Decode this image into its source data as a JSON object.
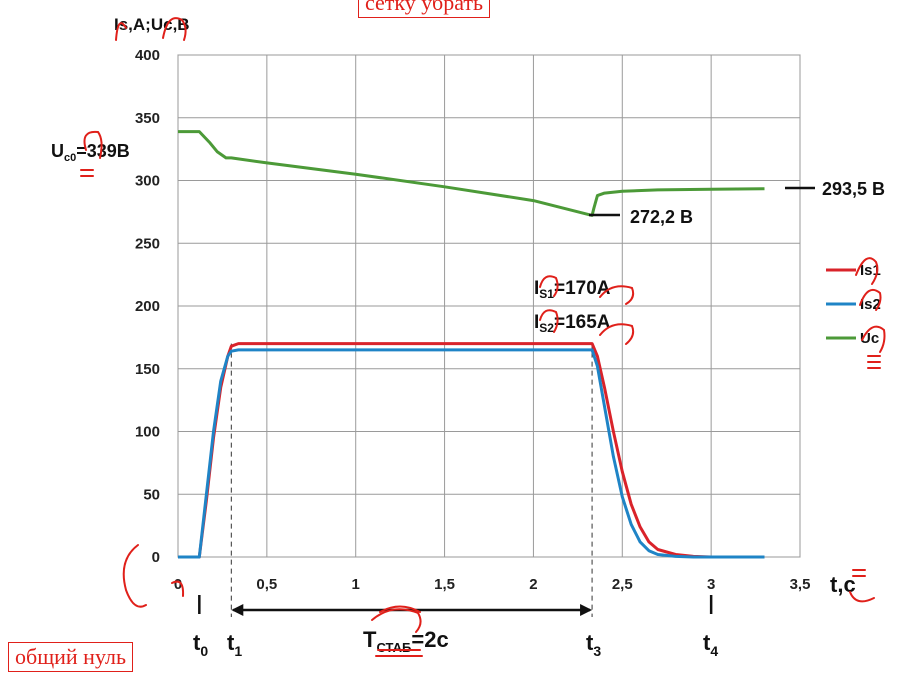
{
  "notes": {
    "top": "сетку убрать",
    "bottom": "общий нуль"
  },
  "chart_data": {
    "type": "line",
    "xlabel": "t,c",
    "ylabel": "Is,A;Uc,B",
    "xlim": [
      0,
      3.5
    ],
    "ylim": [
      0,
      400
    ],
    "xticks": [
      "0",
      "0,5",
      "1",
      "1,5",
      "2",
      "2,5",
      "3",
      "3,5"
    ],
    "yticks": [
      "0",
      "50",
      "100",
      "150",
      "200",
      "250",
      "300",
      "350",
      "400"
    ],
    "grid": true,
    "legend_position": "right",
    "series": [
      {
        "name": "Is1",
        "color": "#d9232a",
        "x": [
          0,
          0.12,
          0.16,
          0.2,
          0.24,
          0.28,
          0.3,
          0.34,
          2.33,
          2.36,
          2.4,
          2.45,
          2.5,
          2.55,
          2.6,
          2.65,
          2.7,
          2.8,
          2.9,
          3.0,
          3.3
        ],
        "y": [
          0,
          0,
          45,
          95,
          135,
          160,
          168,
          170,
          170,
          160,
          135,
          100,
          68,
          42,
          24,
          12,
          6,
          2,
          0.5,
          0,
          0
        ]
      },
      {
        "name": "Is2",
        "color": "#1f84c6",
        "x": [
          0,
          0.12,
          0.16,
          0.2,
          0.24,
          0.28,
          0.3,
          0.34,
          2.33,
          2.36,
          2.4,
          2.45,
          2.5,
          2.55,
          2.6,
          2.65,
          2.7,
          2.8,
          2.9,
          3.0,
          3.3
        ],
        "y": [
          0,
          0,
          50,
          100,
          140,
          160,
          164,
          165,
          165,
          152,
          120,
          80,
          48,
          26,
          12,
          5,
          2,
          0.5,
          0,
          0,
          0
        ]
      },
      {
        "name": "Uc",
        "color": "#4c9a38",
        "x": [
          0,
          0.12,
          0.18,
          0.22,
          0.27,
          0.3,
          0.5,
          1.0,
          1.5,
          2.0,
          2.33,
          2.34,
          2.36,
          2.4,
          2.5,
          2.7,
          3.0,
          3.3
        ],
        "y": [
          339,
          339,
          330,
          323,
          318,
          318,
          314,
          305,
          295,
          284,
          272.2,
          278,
          288,
          290,
          291.5,
          292.5,
          293,
          293.5
        ]
      }
    ],
    "annotations": {
      "uc0": "U",
      "uc0_sub": "c0",
      "uc0_value": "=339B",
      "uc_end": "293,5 B",
      "uc_min": "272,2 B",
      "is1_letter": "I",
      "is1_sub": "S1",
      "is1_value": "=170A",
      "is2_letter": "I",
      "is2_sub": "S2",
      "is2_value": "=165A",
      "t0": "t",
      "t0_sub": "0",
      "t1": "t",
      "t1_sub": "1",
      "t3": "t",
      "t3_sub": "3",
      "t4": "t",
      "t4_sub": "4",
      "tstab": "T",
      "tstab_sub": "СТАБ",
      "tstab_value": "=2c"
    },
    "markers": {
      "t0": 0.12,
      "t1": 0.3,
      "t3": 2.33,
      "t4": 3.0
    }
  }
}
